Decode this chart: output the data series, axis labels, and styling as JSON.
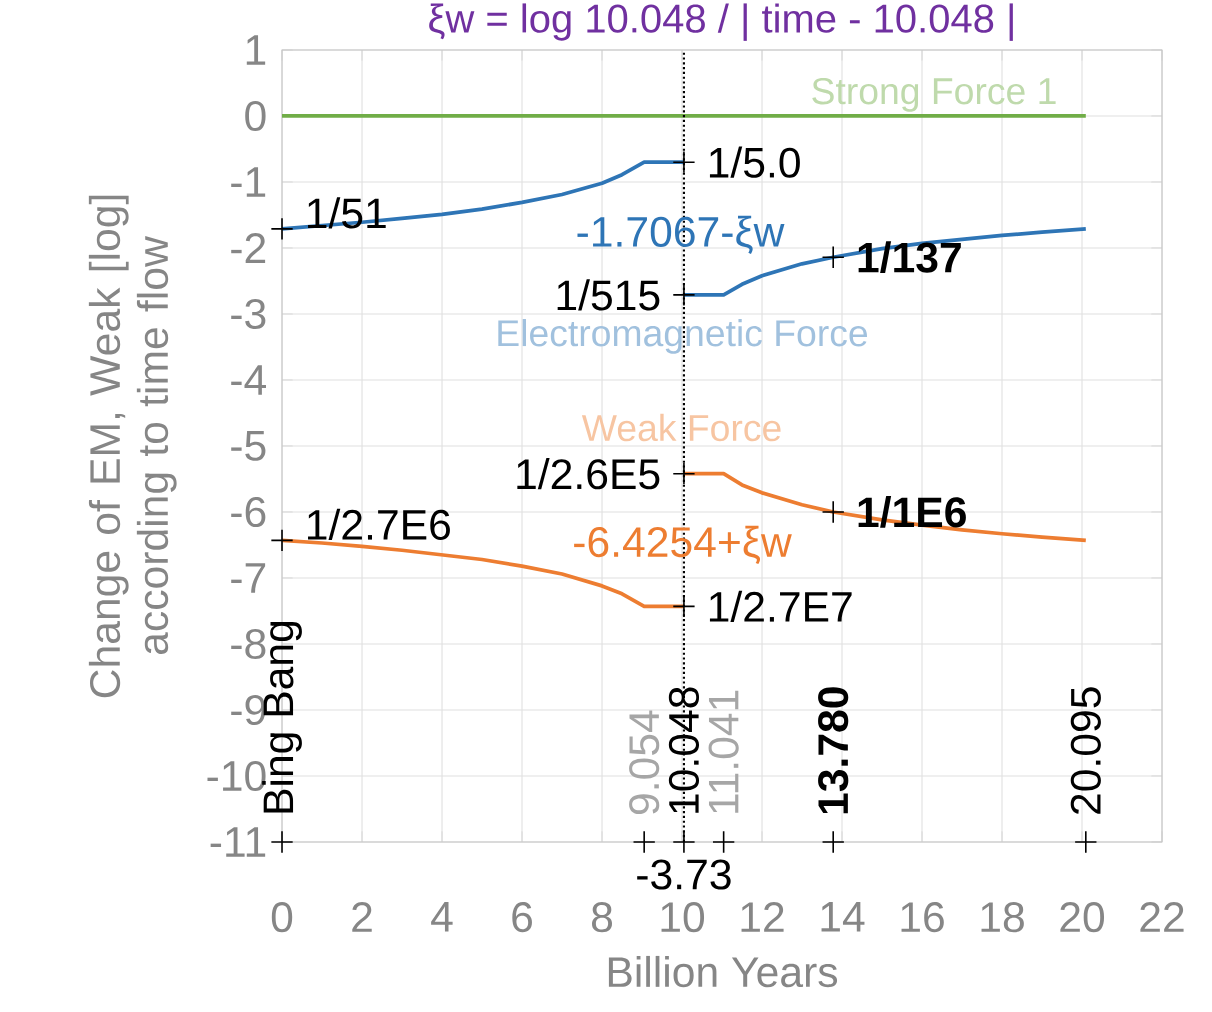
{
  "chart_data": {
    "type": "line",
    "title": "ξw = log 10.048 / | time - 10.048 |",
    "xlabel": "Billion Years",
    "ylabel": "Change of EM, Weak [log] according to time flow",
    "xlim": [
      0,
      22
    ],
    "xticks": [
      0,
      2,
      4,
      6,
      8,
      10,
      12,
      14,
      16,
      18,
      20,
      22
    ],
    "ylim": [
      -11,
      1
    ],
    "yticks": [
      -11,
      -10,
      -9,
      -8,
      -7,
      -6,
      -5,
      -4,
      -3,
      -2,
      -1,
      0,
      1
    ],
    "grid": true,
    "series": [
      {
        "name": "Strong Force 1",
        "color": "#70ad47",
        "x": [
          0,
          20.095
        ],
        "values": [
          0,
          0
        ]
      },
      {
        "name": "Electromagnetic Force",
        "color": "#2e75b6",
        "x": [
          0,
          1,
          2,
          3,
          4,
          5,
          6,
          7,
          8,
          8.5,
          9.054,
          10.048
        ],
        "values": [
          -1.71,
          -1.66,
          -1.61,
          -1.55,
          -1.49,
          -1.41,
          -1.31,
          -1.19,
          -1.02,
          -0.89,
          -0.7,
          -0.7
        ]
      },
      {
        "color": "#2e75b6",
        "x": [
          10.048,
          11.041,
          11.5,
          12,
          13,
          13.78,
          15,
          16,
          17,
          18,
          19,
          20.095
        ],
        "values": [
          -2.71,
          -2.71,
          -2.55,
          -2.42,
          -2.24,
          -2.14,
          -2.01,
          -1.93,
          -1.87,
          -1.81,
          -1.76,
          -1.71
        ]
      },
      {
        "name": "Weak Force",
        "color": "#ed7d31",
        "x": [
          10.048,
          11.041,
          11.5,
          12,
          13,
          13.78,
          15,
          16,
          17,
          18,
          19,
          20.095
        ],
        "values": [
          -5.42,
          -5.42,
          -5.59,
          -5.71,
          -5.89,
          -6.0,
          -6.12,
          -6.2,
          -6.27,
          -6.33,
          -6.38,
          -6.43
        ]
      },
      {
        "color": "#ed7d31",
        "x": [
          0,
          1,
          2,
          3,
          4,
          5,
          6,
          7,
          8,
          8.5,
          9.054,
          10.048
        ],
        "values": [
          -6.43,
          -6.47,
          -6.52,
          -6.58,
          -6.65,
          -6.72,
          -6.82,
          -6.94,
          -7.12,
          -7.24,
          -7.43,
          -7.43
        ]
      },
      {
        "type": "scatter",
        "marker": "cross",
        "color": "#000000",
        "x": [
          0,
          10.048,
          10.048,
          13.78,
          10.048,
          0,
          13.78,
          10.048,
          0,
          9.054,
          10.048,
          11.041,
          13.78,
          20.095
        ],
        "values": [
          -1.71,
          -0.7,
          -2.71,
          -2.14,
          -5.42,
          -6.43,
          -6.0,
          -7.43,
          -11,
          -11,
          -11,
          -11,
          -11,
          -11
        ]
      }
    ],
    "ref_lines": [
      {
        "axis": "x",
        "value": 10.048,
        "color": "#000000",
        "line_style": "dotted"
      }
    ],
    "annotations": [
      {
        "text": "1/51",
        "x": 0,
        "y": -1.71
      },
      {
        "text": "1/5.0",
        "x": 10.048,
        "y": -0.7
      },
      {
        "text": "1/515",
        "x": 10.048,
        "y": -2.71
      },
      {
        "text": "1/137",
        "x": 13.78,
        "y": -2.14
      },
      {
        "text": "1/2.6E5",
        "x": 10.048,
        "y": -5.42
      },
      {
        "text": "1/2.7E6",
        "x": 0,
        "y": -6.43
      },
      {
        "text": "1/1E6",
        "x": 13.78,
        "y": -6.0
      },
      {
        "text": "1/2.7E7",
        "x": 10.048,
        "y": -7.43
      },
      {
        "text": "-1.7067-ξw",
        "x": 9.95,
        "y": -1.8
      },
      {
        "text": "-6.4254+ξw",
        "x": 10.0,
        "y": -6.5
      },
      {
        "text": "Bing Bang",
        "x": 0,
        "y": -11
      },
      {
        "text": "9.054",
        "x": 9.054,
        "y": -11
      },
      {
        "text": "10.048",
        "x": 10.048,
        "y": -11
      },
      {
        "text": "11.041",
        "x": 11.041,
        "y": -11
      },
      {
        "text": "13.780",
        "x": 13.78,
        "y": -11
      },
      {
        "text": "20.095",
        "x": 20.095,
        "y": -11
      },
      "-3.73"
    ]
  }
}
